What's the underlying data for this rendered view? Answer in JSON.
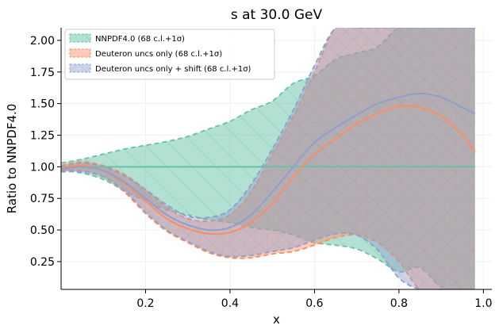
{
  "chart_data": {
    "type": "line",
    "title": "s at 30.0 GeV",
    "xlabel": "x",
    "ylabel": "Ratio to NNPDF4.0",
    "xlim": [
      0.0,
      1.02
    ],
    "ylim": [
      0.03,
      2.1
    ],
    "xticks": [
      "0.2",
      "0.4",
      "0.6",
      "0.8",
      "1.0"
    ],
    "yticks": [
      "0.25",
      "0.50",
      "0.75",
      "1.00",
      "1.25",
      "1.50",
      "1.75",
      "2.00"
    ],
    "xtick_values": [
      0.2,
      0.4,
      0.6,
      0.8,
      1.0
    ],
    "ytick_values": [
      0.25,
      0.5,
      0.75,
      1.0,
      1.25,
      1.5,
      1.75,
      2.0
    ],
    "grid": true,
    "legend_position": "top-left",
    "series": [
      {
        "name": "NNPDF4.0 (68 c.l.+1σ)",
        "color": "#66c2a5",
        "fill_opacity": 0.5,
        "hatch": "diagonal",
        "x": [
          0.0,
          0.05,
          0.1,
          0.15,
          0.2,
          0.25,
          0.3,
          0.35,
          0.4,
          0.45,
          0.5,
          0.55,
          0.6,
          0.65,
          0.7,
          0.75,
          0.8,
          0.85,
          0.9,
          0.95,
          0.98
        ],
        "central": [
          1.0,
          1.0,
          1.0,
          1.0,
          1.0,
          1.0,
          1.0,
          1.0,
          1.0,
          1.0,
          1.0,
          1.0,
          1.0,
          1.0,
          1.0,
          1.0,
          1.0,
          1.0,
          1.0,
          1.0,
          1.0
        ],
        "upper": [
          1.03,
          1.06,
          1.1,
          1.14,
          1.17,
          1.2,
          1.24,
          1.3,
          1.36,
          1.45,
          1.52,
          1.66,
          1.72,
          1.85,
          1.9,
          1.95,
          2.1,
          2.1,
          2.1,
          2.1,
          2.1
        ],
        "lower": [
          0.97,
          0.95,
          0.9,
          0.81,
          0.73,
          0.66,
          0.62,
          0.58,
          0.56,
          0.52,
          0.5,
          0.46,
          0.4,
          0.38,
          0.35,
          0.27,
          0.17,
          0.2,
          0.05,
          0.03,
          0.03
        ]
      },
      {
        "name": "Deuteron uncs only (68 c.l.+1σ)",
        "color": "#fc8d62",
        "fill_opacity": 0.45,
        "hatch": "grid",
        "x": [
          0.0,
          0.05,
          0.1,
          0.15,
          0.2,
          0.25,
          0.3,
          0.35,
          0.4,
          0.45,
          0.5,
          0.55,
          0.6,
          0.65,
          0.7,
          0.75,
          0.8,
          0.85,
          0.9,
          0.95,
          0.98
        ],
        "central": [
          0.99,
          1.01,
          0.97,
          0.87,
          0.73,
          0.59,
          0.51,
          0.47,
          0.48,
          0.56,
          0.71,
          0.92,
          1.1,
          1.22,
          1.34,
          1.42,
          1.48,
          1.47,
          1.4,
          1.25,
          1.12
        ],
        "upper": [
          1.01,
          1.04,
          1.01,
          0.94,
          0.82,
          0.68,
          0.59,
          0.57,
          0.62,
          0.8,
          1.1,
          1.4,
          1.75,
          2.1,
          2.1,
          2.1,
          2.1,
          2.1,
          2.1,
          2.1,
          2.1
        ],
        "lower": [
          0.97,
          0.97,
          0.92,
          0.8,
          0.63,
          0.49,
          0.4,
          0.32,
          0.28,
          0.28,
          0.31,
          0.33,
          0.38,
          0.44,
          0.46,
          0.4,
          0.25,
          0.03,
          0.03,
          0.03,
          0.03
        ]
      },
      {
        "name": "Deuteron uncs only + shift (68 c.l.+1σ)",
        "color": "#8da0cb",
        "fill_opacity": 0.45,
        "hatch": "cross",
        "x": [
          0.0,
          0.05,
          0.1,
          0.15,
          0.2,
          0.25,
          0.3,
          0.35,
          0.4,
          0.45,
          0.5,
          0.55,
          0.6,
          0.65,
          0.7,
          0.75,
          0.8,
          0.85,
          0.9,
          0.95,
          0.98
        ],
        "central": [
          0.98,
          1.0,
          0.97,
          0.88,
          0.75,
          0.62,
          0.54,
          0.5,
          0.52,
          0.62,
          0.8,
          1.0,
          1.19,
          1.31,
          1.41,
          1.5,
          1.55,
          1.58,
          1.55,
          1.47,
          1.42
        ],
        "upper": [
          1.0,
          1.03,
          1.0,
          0.93,
          0.82,
          0.7,
          0.61,
          0.6,
          0.66,
          0.86,
          1.14,
          1.45,
          1.8,
          2.1,
          2.1,
          2.1,
          2.1,
          2.1,
          2.1,
          2.1,
          2.1
        ],
        "lower": [
          0.96,
          0.96,
          0.92,
          0.81,
          0.64,
          0.5,
          0.41,
          0.33,
          0.29,
          0.3,
          0.33,
          0.36,
          0.42,
          0.47,
          0.46,
          0.34,
          0.12,
          0.03,
          0.03,
          0.03,
          0.03
        ]
      }
    ]
  }
}
